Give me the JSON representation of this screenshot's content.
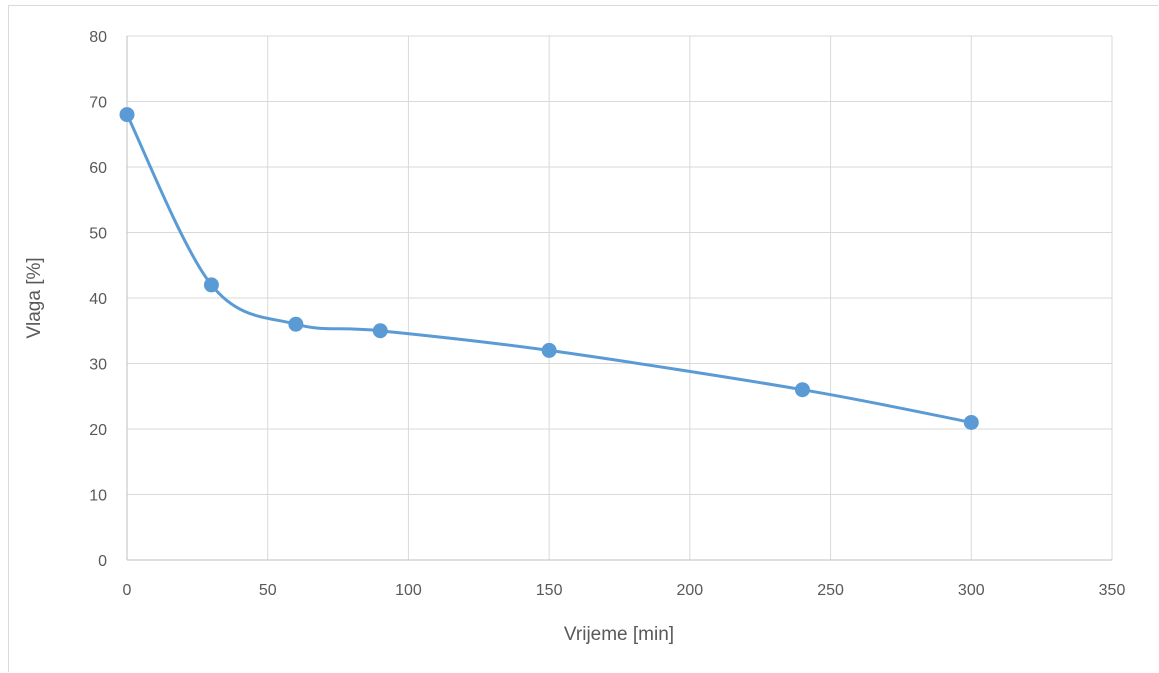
{
  "chart_data": {
    "type": "scatter",
    "smooth": true,
    "markers": true,
    "title": "",
    "xlabel": "Vrijeme [min]",
    "ylabel": "Vlaga [%]",
    "xlim": [
      0,
      350
    ],
    "ylim": [
      0,
      80
    ],
    "xticks": [
      0,
      50,
      100,
      150,
      200,
      250,
      300,
      350
    ],
    "yticks": [
      0,
      10,
      20,
      30,
      40,
      50,
      60,
      70,
      80
    ],
    "xtick_labels": [
      "0",
      "50",
      "100",
      "150",
      "200",
      "250",
      "300",
      "350"
    ],
    "ytick_labels": [
      "0",
      "10",
      "20",
      "30",
      "40",
      "50",
      "60",
      "70",
      "80"
    ],
    "grid": true,
    "legend": "none",
    "series": [
      {
        "x": [
          0,
          30,
          60,
          90,
          150,
          240,
          300
        ],
        "y": [
          68,
          42,
          36,
          35,
          32,
          26,
          21
        ],
        "color": "#5b9bd5"
      }
    ],
    "colors": {
      "gridline": "#d9d9d9",
      "axis": "#bfbfbf",
      "text": "#595959"
    }
  }
}
